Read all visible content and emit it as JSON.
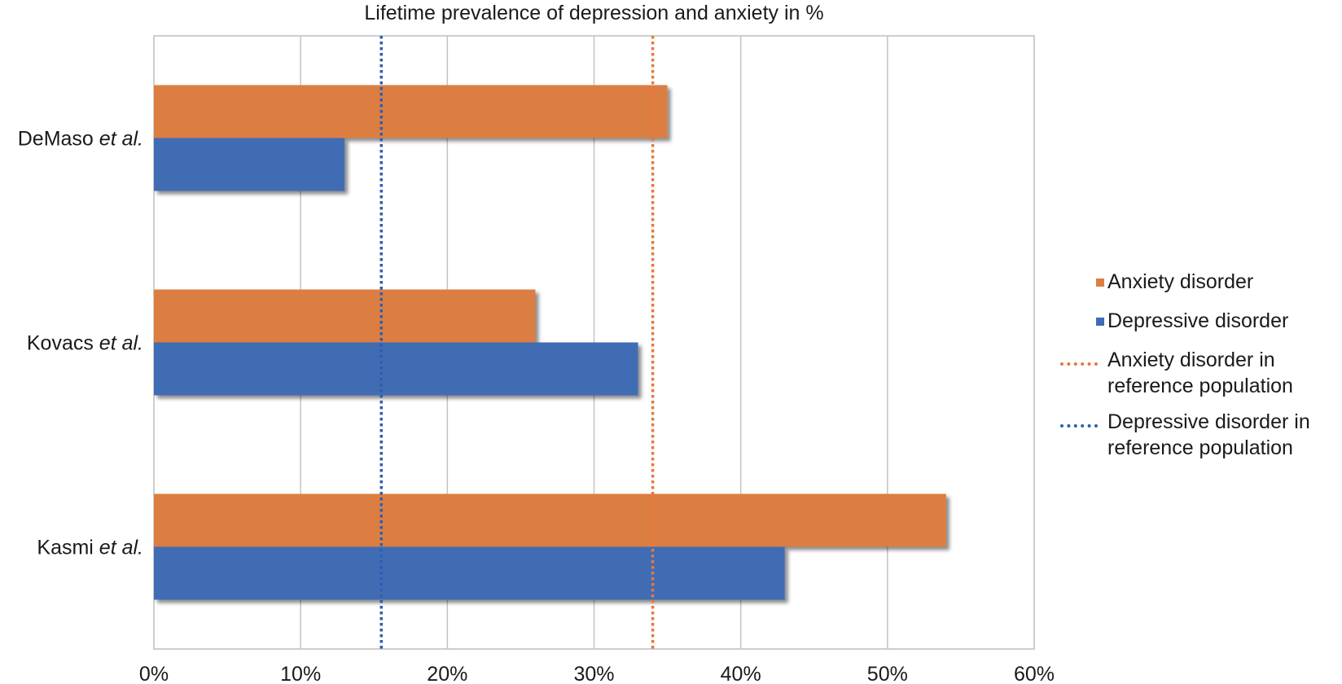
{
  "colors": {
    "anxiety": "#dc7e42",
    "depressive": "#3f6cb4",
    "anxiety_ref": "#e8773c",
    "depressive_ref": "#2f5eb0",
    "grid": "#c4c4c4",
    "axis": "#bdbdbd"
  },
  "chart_data": {
    "type": "bar",
    "orientation": "horizontal",
    "title": "Lifetime prevalence of depression and anxiety in %",
    "categories": [
      {
        "name": "DeMaso",
        "suffix": "et al."
      },
      {
        "name": "Kovacs",
        "suffix": "et al."
      },
      {
        "name": "Kasmi",
        "suffix": "et al."
      }
    ],
    "series": [
      {
        "name": "Anxiety disorder",
        "color_key": "anxiety",
        "values": [
          35,
          26,
          54
        ]
      },
      {
        "name": "Depressive disorder",
        "color_key": "depressive",
        "values": [
          13,
          33,
          43
        ]
      }
    ],
    "reference_lines": [
      {
        "name": "Anxiety disorder in reference population",
        "lines": [
          "Anxiety disorder in",
          "reference population"
        ],
        "value": 34,
        "color_key": "anxiety_ref"
      },
      {
        "name": "Depressive disorder in reference population",
        "lines": [
          "Depressive disorder in",
          "reference population"
        ],
        "value": 15.5,
        "color_key": "depressive_ref"
      }
    ],
    "x_axis": {
      "min": 0,
      "max": 60,
      "step": 10,
      "tick_labels": [
        "0%",
        "10%",
        "20%",
        "30%",
        "40%",
        "50%",
        "60%"
      ]
    },
    "legend_position": "right",
    "grid": true
  }
}
